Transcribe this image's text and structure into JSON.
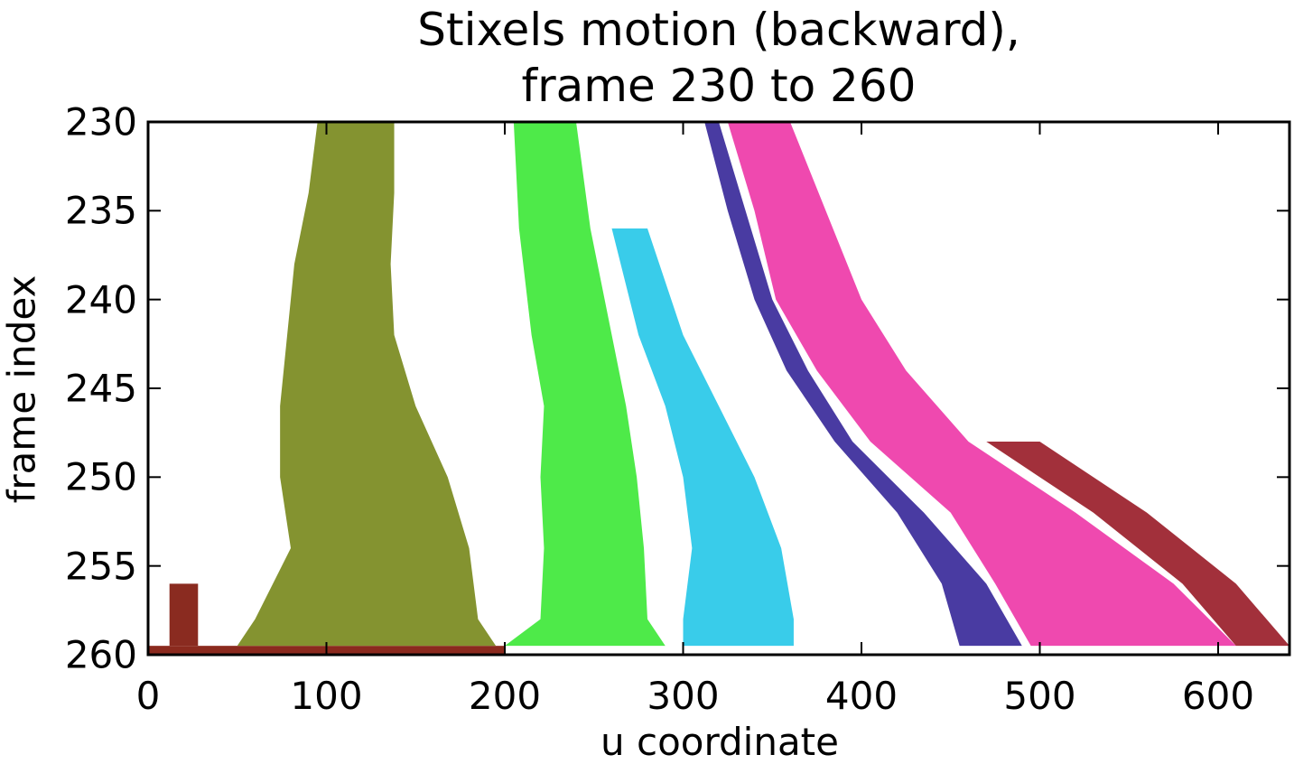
{
  "chart_data": {
    "type": "heatmap",
    "title": [
      "Stixels motion (backward),",
      "frame 230 to 260"
    ],
    "xlabel": "u coordinate",
    "ylabel": "frame index",
    "xlim": [
      0,
      640
    ],
    "ylim": [
      260,
      230
    ],
    "x_ticks": [
      0,
      100,
      200,
      300,
      400,
      500,
      600
    ],
    "y_ticks": [
      230,
      235,
      240,
      245,
      250,
      255,
      260
    ],
    "grid": false,
    "colormap": "hsv by initial u coordinate",
    "bands": [
      {
        "name": "ground-row",
        "color": "#8b2a1e",
        "points": [
          [
            0,
            260
          ],
          [
            200,
            260
          ]
        ]
      },
      {
        "name": "left-bump",
        "color": "#8a2b20",
        "points": [
          [
            12,
            256
          ],
          [
            28,
            256
          ],
          [
            28,
            259.5
          ],
          [
            12,
            259.5
          ]
        ]
      },
      {
        "name": "olive-band",
        "color": "#7a8a1e",
        "left": [
          [
            95,
            230
          ],
          [
            90,
            234
          ],
          [
            82,
            238
          ],
          [
            78,
            242
          ],
          [
            74,
            246
          ],
          [
            74,
            250
          ],
          [
            80,
            254
          ],
          [
            60,
            258
          ],
          [
            50,
            259.5
          ]
        ],
        "right": [
          [
            138,
            230
          ],
          [
            138,
            234
          ],
          [
            136,
            238
          ],
          [
            138,
            242
          ],
          [
            150,
            246
          ],
          [
            168,
            250
          ],
          [
            180,
            254
          ],
          [
            185,
            258
          ],
          [
            195,
            259.5
          ]
        ]
      },
      {
        "name": "green-band",
        "color": "#3fe83a",
        "left": [
          [
            205,
            230
          ],
          [
            208,
            236
          ],
          [
            215,
            242
          ],
          [
            222,
            246
          ],
          [
            220,
            250
          ],
          [
            222,
            254
          ],
          [
            220,
            258
          ],
          [
            200,
            259.5
          ]
        ],
        "right": [
          [
            240,
            230
          ],
          [
            248,
            236
          ],
          [
            260,
            242
          ],
          [
            268,
            246
          ],
          [
            274,
            250
          ],
          [
            278,
            254
          ],
          [
            280,
            258
          ],
          [
            290,
            259.5
          ]
        ]
      },
      {
        "name": "cyan-band",
        "color": "#28c8e8",
        "left": [
          [
            260,
            236
          ],
          [
            275,
            242
          ],
          [
            290,
            246
          ],
          [
            300,
            250
          ],
          [
            305,
            254
          ],
          [
            300,
            258
          ],
          [
            300,
            259.5
          ]
        ],
        "right": [
          [
            280,
            236
          ],
          [
            300,
            242
          ],
          [
            320,
            246
          ],
          [
            340,
            250
          ],
          [
            355,
            254
          ],
          [
            362,
            258
          ],
          [
            362,
            259.5
          ]
        ]
      },
      {
        "name": "navy-band",
        "color": "#3a2a9a",
        "left": [
          [
            312,
            230
          ],
          [
            325,
            235
          ],
          [
            340,
            240
          ],
          [
            358,
            244
          ],
          [
            385,
            248
          ],
          [
            420,
            252
          ],
          [
            445,
            256
          ],
          [
            455,
            259.5
          ]
        ],
        "right": [
          [
            320,
            230
          ],
          [
            335,
            235
          ],
          [
            350,
            240
          ],
          [
            370,
            244
          ],
          [
            395,
            248
          ],
          [
            435,
            252
          ],
          [
            470,
            256
          ],
          [
            490,
            259.5
          ]
        ]
      },
      {
        "name": "magenta-band",
        "color": "#ee3aa8",
        "left": [
          [
            325,
            230
          ],
          [
            340,
            235
          ],
          [
            352,
            240
          ],
          [
            375,
            244
          ],
          [
            405,
            248
          ],
          [
            450,
            252
          ],
          [
            475,
            256
          ],
          [
            495,
            259.5
          ]
        ],
        "right": [
          [
            360,
            230
          ],
          [
            380,
            235
          ],
          [
            400,
            240
          ],
          [
            425,
            244
          ],
          [
            460,
            248
          ],
          [
            520,
            252
          ],
          [
            575,
            256
          ],
          [
            610,
            259.5
          ]
        ]
      },
      {
        "name": "maroon-band",
        "color": "#9a1e2a",
        "left": [
          [
            470,
            248
          ],
          [
            530,
            252
          ],
          [
            580,
            256
          ],
          [
            610,
            259.5
          ]
        ],
        "right": [
          [
            500,
            248
          ],
          [
            560,
            252
          ],
          [
            610,
            256
          ],
          [
            640,
            259.5
          ]
        ]
      }
    ]
  }
}
